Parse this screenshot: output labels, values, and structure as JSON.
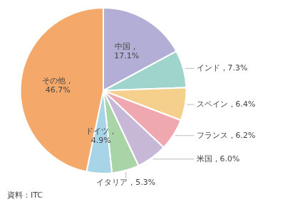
{
  "chart_data": {
    "type": "pie",
    "values": [
      17.1,
      7.3,
      6.4,
      6.2,
      6.0,
      5.3,
      4.9,
      46.7
    ],
    "value_labels": [
      "中国，\n17.1%",
      "インド，7.3%",
      "スペイン，6.4%",
      "フランス，6.2%",
      "米国，6.0%",
      "イタリア，5.3%",
      "ドイツ，\n4.9%",
      "その他，\n46.7%"
    ],
    "colors": [
      "#b3aed6",
      "#9fd4cc",
      "#f5d08c",
      "#f0a8b0",
      "#c8b8d8",
      "#a8d4a8",
      "#a8d4e8",
      "#f4a96a"
    ],
    "data_labels": true,
    "annotations": [
      "資料：ITC"
    ]
  }
}
